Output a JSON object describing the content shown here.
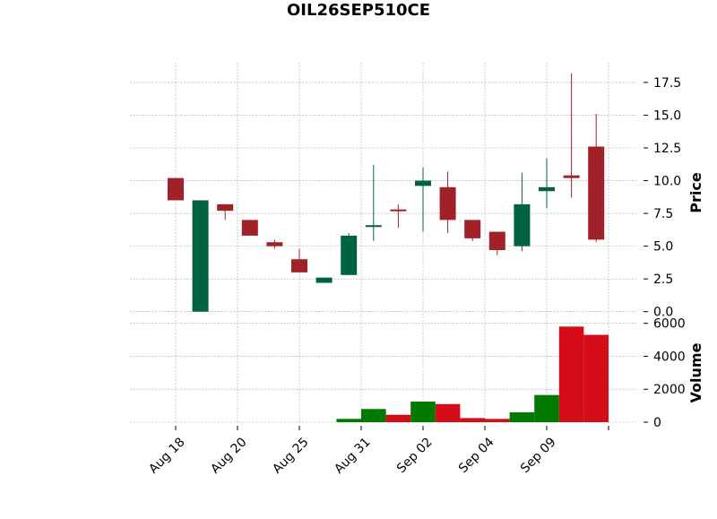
{
  "chart_data": {
    "type": "candlestick",
    "title": "OIL26SEP510CE",
    "price_panel": {
      "ylabel": "Price",
      "ylim": [
        -0.5,
        19.0
      ],
      "yticks": [
        0.0,
        2.5,
        5.0,
        7.5,
        10.0,
        12.5,
        15.0,
        17.5
      ],
      "ytick_labels": [
        "0.0",
        "2.5",
        "5.0",
        "7.5",
        "10.0",
        "12.5",
        "15.0",
        "17.5"
      ],
      "grid": true
    },
    "volume_panel": {
      "ylabel": "Volume",
      "ylim": [
        0,
        6200
      ],
      "yticks": [
        0,
        2000,
        4000,
        6000
      ],
      "ytick_labels": [
        "0",
        "2000",
        "4000",
        "6000"
      ],
      "grid": true
    },
    "xtick_labels": [
      {
        "index": 0,
        "label": "Aug 18"
      },
      {
        "index": 2.5,
        "label": "Aug 20"
      },
      {
        "index": 5,
        "label": "Aug 25"
      },
      {
        "index": 7.5,
        "label": "Aug 31"
      },
      {
        "index": 10,
        "label": "Sep 02"
      },
      {
        "index": 12.5,
        "label": "Sep 04"
      },
      {
        "index": 15,
        "label": "Sep 09"
      },
      {
        "index": 17.5,
        "label": ""
      }
    ],
    "candles": [
      {
        "open": 10.2,
        "high": 10.2,
        "low": 8.5,
        "close": 8.5,
        "volume": 0
      },
      {
        "open": 0.0,
        "high": 8.5,
        "low": 0.0,
        "close": 8.5,
        "volume": 0
      },
      {
        "open": 8.2,
        "high": 8.2,
        "low": 7.0,
        "close": 7.7,
        "volume": 0
      },
      {
        "open": 7.0,
        "high": 7.0,
        "low": 5.8,
        "close": 5.8,
        "volume": 0
      },
      {
        "open": 5.3,
        "high": 5.5,
        "low": 4.8,
        "close": 5.0,
        "volume": 0
      },
      {
        "open": 4.0,
        "high": 4.8,
        "low": 3.0,
        "close": 3.0,
        "volume": 0
      },
      {
        "open": 2.2,
        "high": 2.6,
        "low": 2.2,
        "close": 2.6,
        "volume": 0
      },
      {
        "open": 2.8,
        "high": 6.0,
        "low": 2.8,
        "close": 5.8,
        "volume": 200
      },
      {
        "open": 6.5,
        "high": 11.2,
        "low": 5.4,
        "close": 6.6,
        "volume": 800
      },
      {
        "open": 7.8,
        "high": 8.2,
        "low": 6.4,
        "close": 7.7,
        "volume": 450
      },
      {
        "open": 9.6,
        "high": 11.0,
        "low": 6.1,
        "close": 10.0,
        "volume": 1250
      },
      {
        "open": 9.5,
        "high": 10.7,
        "low": 6.0,
        "close": 7.0,
        "volume": 1100
      },
      {
        "open": 7.0,
        "high": 7.0,
        "low": 5.4,
        "close": 5.6,
        "volume": 250
      },
      {
        "open": 6.1,
        "high": 6.1,
        "low": 4.3,
        "close": 4.7,
        "volume": 200
      },
      {
        "open": 5.0,
        "high": 10.6,
        "low": 4.6,
        "close": 8.2,
        "volume": 600
      },
      {
        "open": 9.2,
        "high": 11.7,
        "low": 7.9,
        "close": 9.5,
        "volume": 1650
      },
      {
        "open": 10.4,
        "high": 18.2,
        "low": 8.7,
        "close": 10.2,
        "volume": 5800
      },
      {
        "open": 12.6,
        "high": 15.1,
        "low": 5.3,
        "close": 5.5,
        "volume": 5300
      }
    ],
    "colors": {
      "up_candle": "#006340",
      "down_candle": "#A02128",
      "up_volume": "#007A00",
      "down_volume": "#D50D18",
      "grid": "#a9a9a9",
      "text": "#000000"
    }
  }
}
